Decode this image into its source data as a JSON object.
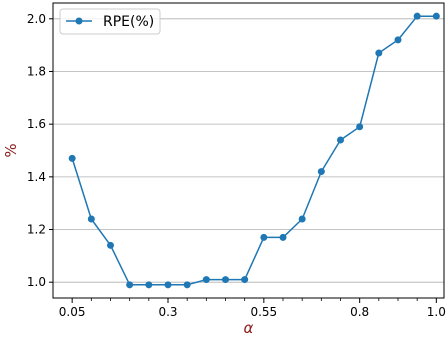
{
  "chart_data": {
    "type": "line",
    "xlabel": "α",
    "ylabel": "%",
    "xlim": [
      0.0,
      1.02
    ],
    "ylim": [
      0.94,
      2.06
    ],
    "grid": "y",
    "legend_position": "top-left",
    "x_ticks": [
      {
        "value": 0.05,
        "label": "0.05"
      },
      {
        "value": 0.3,
        "label": "0.3"
      },
      {
        "value": 0.55,
        "label": "0.55"
      },
      {
        "value": 0.8,
        "label": "0.8"
      },
      {
        "value": 1.0,
        "label": "1.0"
      }
    ],
    "x_minor_ticks": [
      0.1,
      0.15,
      0.2,
      0.25,
      0.35,
      0.4,
      0.45,
      0.5,
      0.6,
      0.65,
      0.7,
      0.75,
      0.85,
      0.9,
      0.95
    ],
    "y_ticks": [
      {
        "value": 1.0,
        "label": "1.0"
      },
      {
        "value": 1.2,
        "label": "1.2"
      },
      {
        "value": 1.4,
        "label": "1.4"
      },
      {
        "value": 1.6,
        "label": "1.6"
      },
      {
        "value": 1.8,
        "label": "1.8"
      },
      {
        "value": 2.0,
        "label": "2.0"
      }
    ],
    "series": [
      {
        "name": "RPE(%)",
        "color": "#1f77b4",
        "x": [
          0.05,
          0.1,
          0.15,
          0.2,
          0.25,
          0.3,
          0.35,
          0.4,
          0.45,
          0.5,
          0.55,
          0.6,
          0.65,
          0.7,
          0.75,
          0.8,
          0.85,
          0.9,
          0.95,
          1.0
        ],
        "y": [
          1.47,
          1.24,
          1.14,
          0.99,
          0.99,
          0.99,
          0.99,
          1.01,
          1.01,
          1.01,
          1.17,
          1.17,
          1.24,
          1.42,
          1.54,
          1.59,
          1.87,
          1.92,
          2.01,
          2.01
        ]
      }
    ],
    "axis_label_color": "#8b1a1a"
  }
}
